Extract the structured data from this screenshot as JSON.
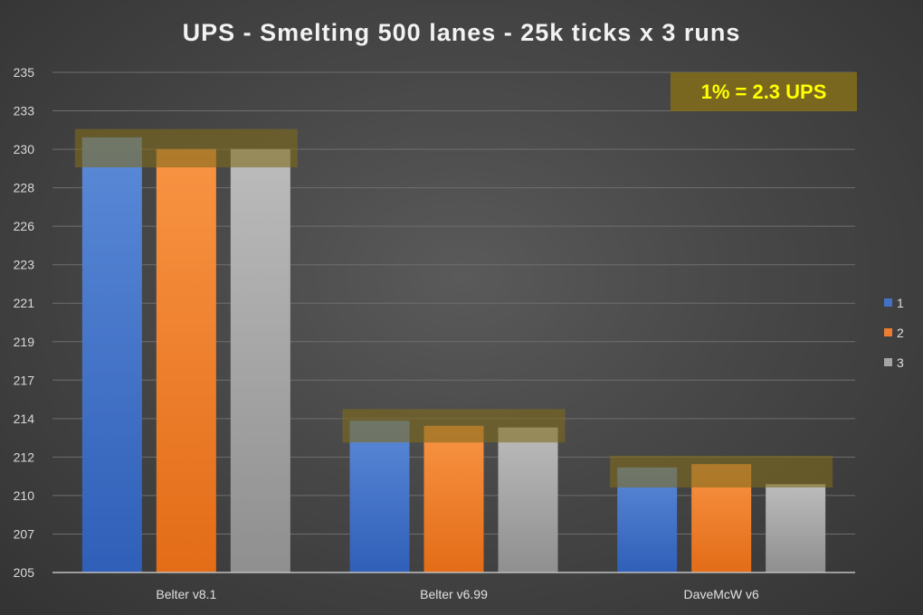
{
  "chart_data": {
    "type": "bar",
    "title": "UPS - Smelting 500 lanes - 25k ticks x 3 runs",
    "categories": [
      "Belter v8.1",
      "Belter v6.99",
      "DaveMcW v6"
    ],
    "series": [
      {
        "name": "1",
        "values": [
          231.1,
          214.1,
          211.3
        ],
        "color": "#4472c4"
      },
      {
        "name": "2",
        "values": [
          230.4,
          213.8,
          211.5
        ],
        "color": "#ed7d31"
      },
      {
        "name": "3",
        "values": [
          230.4,
          213.7,
          210.3
        ],
        "color": "#a5a5a5"
      }
    ],
    "ylim": [
      205,
      235
    ],
    "yticks": [
      "205",
      "207",
      "210",
      "212",
      "214",
      "217",
      "219",
      "221",
      "223",
      "226",
      "228",
      "230",
      "233",
      "235"
    ],
    "grid": true,
    "legend_position": "right",
    "annotation": "1% = 2.3 UPS",
    "highlight_bands": [
      {
        "category": "Belter v8.1",
        "from": 229.3,
        "to": 231.6
      },
      {
        "category": "Belter v6.99",
        "from": 212.8,
        "to": 214.8
      },
      {
        "category": "DaveMcW v6",
        "from": 210.1,
        "to": 212.0
      }
    ],
    "annotation_color": "#7f6a1c"
  }
}
